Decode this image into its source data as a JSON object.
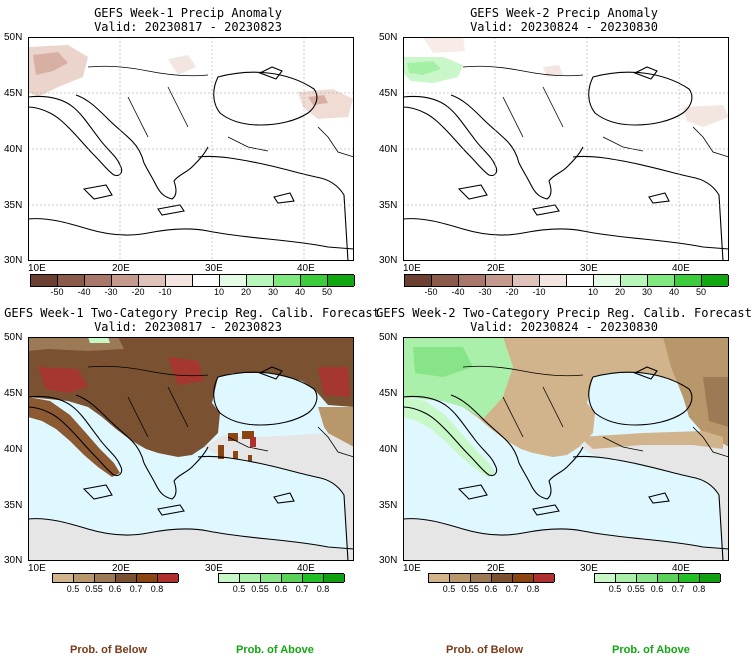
{
  "panels": [
    {
      "title": "GEFS Week-1 Precip Anomaly",
      "valid": "Valid: 20230817 - 20230823"
    },
    {
      "title": "GEFS Week-2 Precip Anomaly",
      "valid": "Valid: 20230824 - 20230830"
    },
    {
      "title": "GEFS Week-1 Two-Category Precip Reg. Calib. Forecast",
      "valid": "Valid: 20230817 - 20230823"
    },
    {
      "title": "GEFS Week-2 Two-Category Precip Reg. Calib. Forecast",
      "valid": "Valid: 20230824 - 20230830"
    }
  ],
  "lat_ticks": [
    "50N",
    "45N",
    "40N",
    "35N",
    "30N"
  ],
  "lon_ticks": [
    "10E",
    "20E",
    "30E",
    "40E"
  ],
  "anomaly_colorbar": {
    "labels": [
      "-50",
      "-40",
      "-30",
      "-20",
      "-10",
      "10",
      "20",
      "30",
      "40",
      "50"
    ],
    "colors": [
      "#6b3f32",
      "#8b5a4b",
      "#a8776a",
      "#c49a8e",
      "#dfc3ba",
      "#f3e5e0",
      "#ffffff",
      "#e6fbe6",
      "#b8f5b8",
      "#7fe87f",
      "#3ccc3c",
      "#11a811"
    ]
  },
  "below_colorbar": {
    "labels": [
      "0.5",
      "0.55",
      "0.6",
      "0.7",
      "0.8"
    ],
    "colors": [
      "#d2b48c",
      "#b8976b",
      "#9c7a55",
      "#7a5232",
      "#8b4513",
      "#b03030"
    ]
  },
  "above_colorbar": {
    "labels": [
      "0.5",
      "0.55",
      "0.6",
      "0.7",
      "0.8"
    ],
    "colors": [
      "#c8f7c8",
      "#aaf0aa",
      "#88e488",
      "#5ad25a",
      "#22c022",
      "#10a010"
    ]
  },
  "prob_below_label": "Prob. of Below",
  "prob_above_label": "Prob. of Above",
  "colors": {
    "sea": "#dff8ff",
    "land_grey": "#e6e6e6",
    "below_accent": "#7a3b1a",
    "above_accent": "#11a811"
  }
}
